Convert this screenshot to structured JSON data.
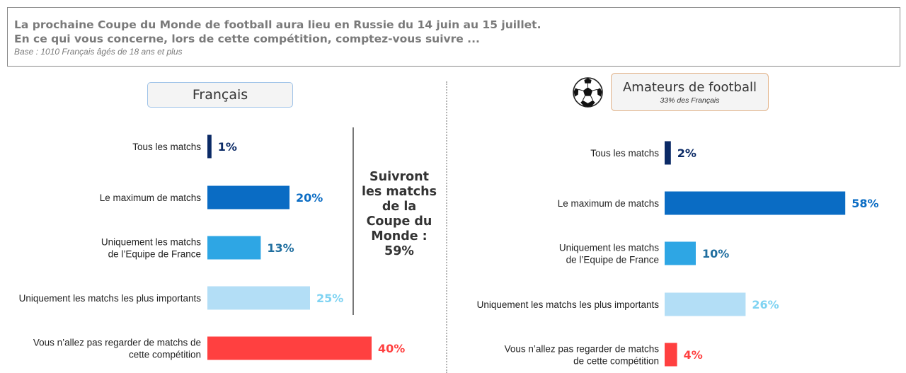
{
  "header": {
    "question_line1": "La prochaine Coupe du Monde de football aura lieu en Russie du 14 juin au 15 juillet.",
    "question_line2": "En ce qui vous concerne, lors de cette compétition, comptez-vous suivre ...",
    "base": "Base : 1010 Français âgés de 18 ans et plus"
  },
  "left_panel": {
    "title": "Français"
  },
  "right_panel": {
    "title": "Amateurs de football",
    "subtitle": "33% des Français",
    "icon": "soccer-ball-icon"
  },
  "summary": {
    "text": "Suivront\nles matchs\nde la\nCoupe du\nMonde :\n59%"
  },
  "colors": {
    "tous": "#0b2a66",
    "maximum": "#0a6cc4",
    "equipe": "#2ea6e4",
    "importants": "#b3def6",
    "aucun": "#ff4040"
  },
  "chart_data": [
    {
      "type": "bar",
      "orientation": "horizontal",
      "categories": [
        [
          "Tous les matchs"
        ],
        [
          "Le maximum de matchs"
        ],
        [
          "Uniquement les matchs",
          "de l’Equipe de France"
        ],
        [
          "Uniquement les matchs les plus importants"
        ],
        [
          "Vous n’allez pas regarder de matchs de",
          "cette compétition"
        ]
      ],
      "values": [
        1,
        20,
        13,
        25,
        40
      ],
      "value_labels": [
        "1%",
        "20%",
        "13%",
        "25%",
        "40%"
      ],
      "unit": "%"
    },
    {
      "type": "bar",
      "orientation": "horizontal",
      "categories": [
        [
          "Tous les matchs"
        ],
        [
          "Le maximum de matchs"
        ],
        [
          "Uniquement les matchs",
          "de l’Equipe de France"
        ],
        [
          "Uniquement les matchs les plus importants"
        ],
        [
          "Vous n’allez pas regarder de matchs",
          "de cette compétition"
        ]
      ],
      "values": [
        2,
        58,
        10,
        26,
        4
      ],
      "value_labels": [
        "2%",
        "58%",
        "10%",
        "26%",
        "4%"
      ],
      "unit": "%"
    }
  ]
}
